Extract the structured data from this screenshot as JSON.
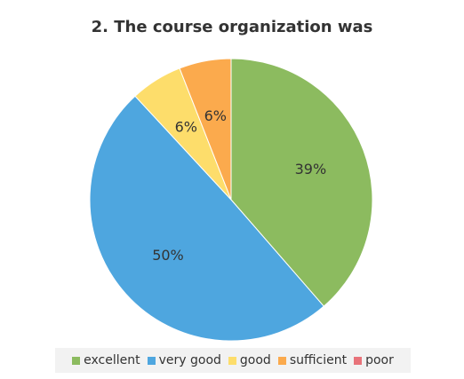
{
  "chart_data": {
    "type": "pie",
    "title": "2. The course organization was",
    "slices": [
      {
        "name": "excellent",
        "value": 39,
        "label": "39%",
        "color": "#8cbb5f"
      },
      {
        "name": "very good",
        "value": 50,
        "label": "50%",
        "color": "#4ea6df"
      },
      {
        "name": "good",
        "value": 6,
        "label": "6%",
        "color": "#fddd6b"
      },
      {
        "name": "sufficient",
        "value": 6,
        "label": "6%",
        "color": "#fbaa4d"
      },
      {
        "name": "poor",
        "value": 0,
        "label": "",
        "color": "#e8737a"
      }
    ],
    "legend_position": "bottom"
  }
}
